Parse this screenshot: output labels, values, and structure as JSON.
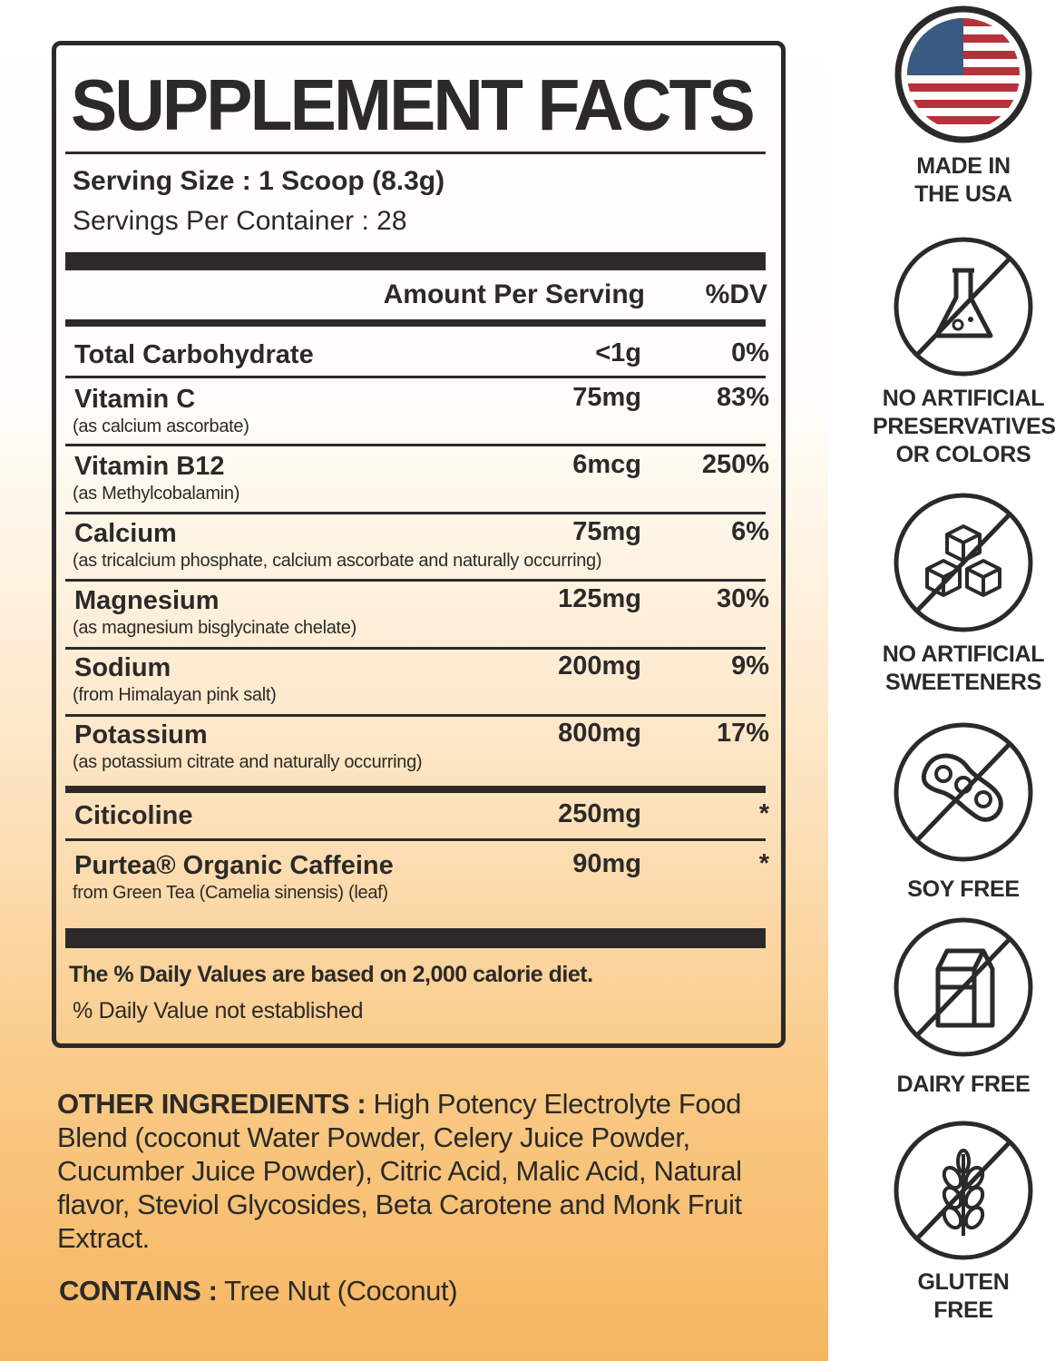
{
  "title": "SUPPLEMENT FACTS",
  "serving_size": "Serving Size : 1 Scoop (8.3g)",
  "servings_per_container": "Servings Per Container : 28",
  "header": {
    "amount": "Amount Per Serving",
    "dv": "%DV"
  },
  "rows": [
    {
      "name": "Total Carbohydrate",
      "sub": "",
      "amount": "<1g",
      "dv": "0%"
    },
    {
      "name": "Vitamin C",
      "sub": "(as calcium ascorbate)",
      "amount": "75mg",
      "dv": "83%"
    },
    {
      "name": "Vitamin B12",
      "sub": "(as Methylcobalamin)",
      "amount": "6mcg",
      "dv": "250%"
    },
    {
      "name": "Calcium",
      "sub": "(as tricalcium phosphate, calcium ascorbate and naturally occurring)",
      "amount": "75mg",
      "dv": "6%"
    },
    {
      "name": "Magnesium",
      "sub": "(as magnesium bisglycinate chelate)",
      "amount": "125mg",
      "dv": "30%"
    },
    {
      "name": "Sodium",
      "sub": "(from Himalayan pink salt)",
      "amount": "200mg",
      "dv": "9%"
    },
    {
      "name": "Potassium",
      "sub": "(as potassium citrate and naturally occurring)",
      "amount": "800mg",
      "dv": "17%"
    },
    {
      "name": "Citicoline",
      "sub": "",
      "amount": "250mg",
      "dv": "*"
    },
    {
      "name": "Purtea® Organic Caffeine",
      "sub": "from Green Tea (Camelia sinensis) (leaf)",
      "amount": "90mg",
      "dv": "*"
    }
  ],
  "footnote_1": "The % Daily Values are based on 2,000 calorie diet.",
  "footnote_2": "% Daily Value not established",
  "other_ingredients": {
    "label": "OTHER INGREDIENTS :",
    "text": " High Potency Electrolyte Food Blend (coconut Water Powder, Celery Juice Powder, Cucumber Juice Powder), Citric Acid, Malic Acid, Natural flavor, Steviol Glycosides, Beta Carotene and Monk Fruit Extract."
  },
  "contains": {
    "label": "CONTAINS :",
    "text": " Tree Nut (Coconut)"
  },
  "badges": [
    {
      "icon": "us-flag-icon",
      "lines": [
        "MADE IN",
        "THE USA"
      ]
    },
    {
      "icon": "no-flask-icon",
      "lines": [
        "NO ARTIFICIAL",
        "PRESERVATIVES",
        "OR COLORS"
      ]
    },
    {
      "icon": "no-sugar-cubes-icon",
      "lines": [
        "NO ARTIFICIAL",
        "SWEETENERS"
      ]
    },
    {
      "icon": "no-soybean-icon",
      "lines": [
        "SOY FREE"
      ]
    },
    {
      "icon": "no-milk-carton-icon",
      "lines": [
        "DAIRY FREE"
      ]
    },
    {
      "icon": "no-wheat-icon",
      "lines": [
        "GLUTEN",
        "FREE"
      ]
    }
  ],
  "colors": {
    "ink": "#2b2a29",
    "orange": "#f6b660",
    "flag_red": "#b5323a",
    "flag_blue": "#3b5a82"
  }
}
